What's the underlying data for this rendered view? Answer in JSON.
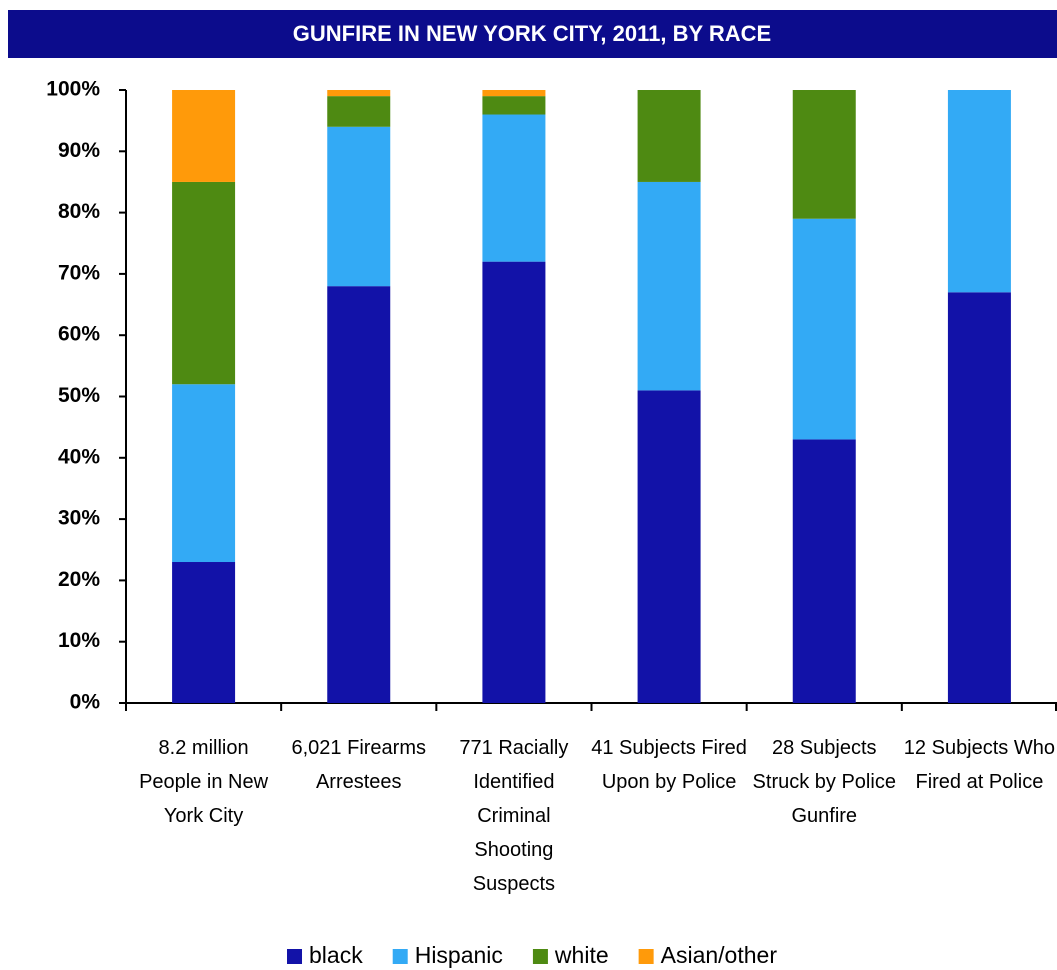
{
  "chart_data": {
    "type": "stacked-bar",
    "title": "GUNFIRE IN NEW YORK CITY, 2011, BY RACE",
    "categories": [
      "8.2 million People in New York City",
      "6,021 Firearms Arrestees",
      "771 Racially Identified Criminal Shooting Suspects",
      "41 Subjects Fired Upon by Police",
      "28 Subjects Struck by Police Gunfire",
      "12 Subjects Who Fired at Police"
    ],
    "series": [
      {
        "name": "black",
        "color": "#1212a8",
        "values": [
          23,
          68,
          72,
          51,
          43,
          67
        ]
      },
      {
        "name": "Hispanic",
        "color": "#33aaf5",
        "values": [
          29,
          26,
          24,
          34,
          36,
          33
        ]
      },
      {
        "name": "white",
        "color": "#4e8a12",
        "values": [
          33,
          5,
          3,
          15,
          21,
          0
        ]
      },
      {
        "name": "Asian/other",
        "color": "#ff9a0a",
        "values": [
          15,
          1,
          1,
          0,
          0,
          0
        ]
      }
    ],
    "ylim": [
      0,
      100
    ],
    "yticks": [
      {
        "value": 0,
        "label": "0%"
      },
      {
        "value": 10,
        "label": "10%"
      },
      {
        "value": 20,
        "label": "20%"
      },
      {
        "value": 30,
        "label": "30%"
      },
      {
        "value": 40,
        "label": "40%"
      },
      {
        "value": 50,
        "label": "50%"
      },
      {
        "value": 60,
        "label": "60%"
      },
      {
        "value": 70,
        "label": "70%"
      },
      {
        "value": 80,
        "label": "80%"
      },
      {
        "value": 90,
        "label": "90%"
      },
      {
        "value": 100,
        "label": "100%"
      }
    ],
    "legend": "bottom"
  }
}
